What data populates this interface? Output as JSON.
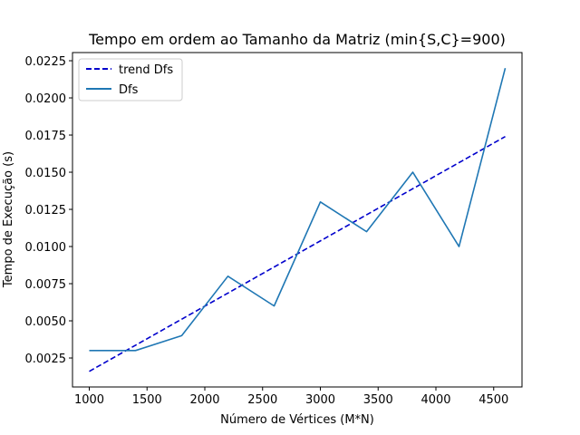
{
  "chart_data": {
    "type": "line",
    "title": "Tempo em ordem ao Tamanho da Matriz (min{S,C}=900)",
    "xlabel": "Número de Vértices (M*N)",
    "ylabel": "Tempo de Execução (s)",
    "xlim": [
      855,
      4745
    ],
    "ylim": [
      0.00055,
      0.02305
    ],
    "x_ticks": [
      1000,
      1500,
      2000,
      2500,
      3000,
      3500,
      4000,
      4500
    ],
    "y_ticks": [
      0.0025,
      0.005,
      0.0075,
      0.01,
      0.0125,
      0.015,
      0.0175,
      0.02,
      0.0225
    ],
    "x_tick_labels": [
      "1000",
      "1500",
      "2000",
      "2500",
      "3000",
      "3500",
      "4000",
      "4500"
    ],
    "y_tick_labels": [
      "0.0025",
      "0.0050",
      "0.0075",
      "0.0100",
      "0.0125",
      "0.0150",
      "0.0175",
      "0.0200",
      "0.0225"
    ],
    "grid": false,
    "legend_position": "upper-left",
    "series": [
      {
        "name": "trend Dfs",
        "style": "dashed",
        "color": "#0000cc",
        "x": [
          1000,
          4600
        ],
        "y": [
          0.0016,
          0.0174
        ]
      },
      {
        "name": "Dfs",
        "style": "solid",
        "color": "#1f77b4",
        "x": [
          1000,
          1400,
          1800,
          2200,
          2600,
          3000,
          3400,
          3800,
          4200,
          4600
        ],
        "y": [
          0.003,
          0.003,
          0.004,
          0.008,
          0.006,
          0.013,
          0.011,
          0.015,
          0.01,
          0.022
        ]
      }
    ]
  }
}
